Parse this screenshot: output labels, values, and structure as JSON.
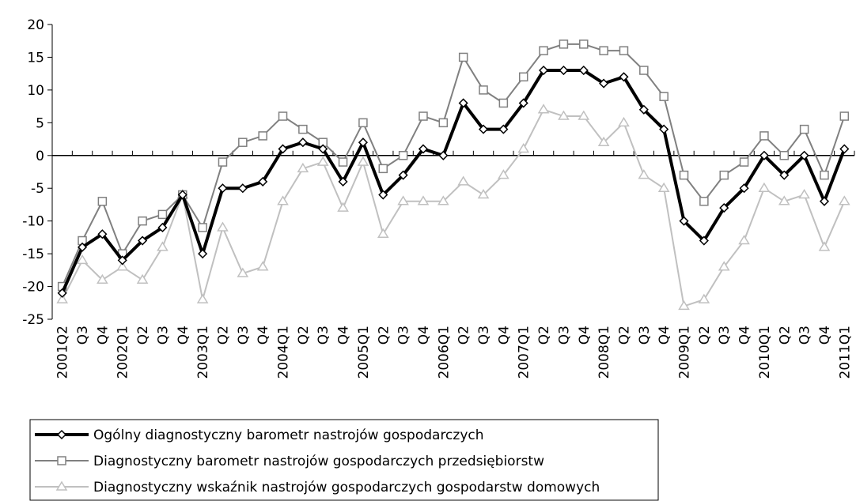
{
  "chart_data": {
    "type": "line",
    "categories": [
      "2001Q2",
      "Q3",
      "Q4",
      "2002Q1",
      "Q2",
      "Q3",
      "Q4",
      "2003Q1",
      "Q2",
      "Q3",
      "Q4",
      "2004Q1",
      "Q2",
      "Q3",
      "Q4",
      "2005Q1",
      "Q2",
      "Q3",
      "Q4",
      "2006Q1",
      "Q2",
      "Q3",
      "Q4",
      "2007Q1",
      "Q2",
      "Q3",
      "Q4",
      "2008Q1",
      "Q2",
      "Q3",
      "Q4",
      "2009Q1",
      "Q2",
      "Q3",
      "Q4",
      "2010Q1",
      "Q2",
      "Q3",
      "Q4",
      "2011Q1"
    ],
    "series": [
      {
        "name": "Ogólny diagnostyczny barometr nastrojów gospodarczych",
        "color": "#000000",
        "marker": "diamond",
        "line_width": 4,
        "values": [
          -21,
          -14,
          -12,
          -16,
          -13,
          -11,
          -6,
          -15,
          -5,
          -5,
          -4,
          1,
          2,
          1,
          -4,
          2,
          -6,
          -3,
          1,
          0,
          8,
          4,
          4,
          8,
          13,
          13,
          13,
          11,
          12,
          7,
          4,
          -10,
          -13,
          -8,
          -5,
          0,
          -3,
          0,
          -7,
          1
        ]
      },
      {
        "name": "Diagnostyczny barometr nastrojów gospodarczych przedsiębiorstw",
        "color": "#808080",
        "marker": "square",
        "line_width": 2,
        "values": [
          -20,
          -13,
          -7,
          -15,
          -10,
          -9,
          -6,
          -11,
          -1,
          2,
          3,
          6,
          4,
          2,
          -1,
          5,
          -2,
          0,
          6,
          5,
          15,
          10,
          8,
          12,
          16,
          17,
          17,
          16,
          16,
          13,
          9,
          -3,
          -7,
          -3,
          -1,
          3,
          0,
          4,
          -3,
          6
        ]
      },
      {
        "name": "Diagnostyczny wskaźnik nastrojów gospodarczych gospodarstw domowych",
        "color": "#c0c0c0",
        "marker": "triangle",
        "line_width": 2,
        "values": [
          -22,
          -16,
          -19,
          -17,
          -19,
          -14,
          -6,
          -22,
          -11,
          -18,
          -17,
          -7,
          -2,
          -1,
          -8,
          -1,
          -12,
          -7,
          -7,
          -7,
          -4,
          -6,
          -3,
          1,
          7,
          6,
          6,
          2,
          5,
          -3,
          -5,
          -23,
          -22,
          -17,
          -13,
          -5,
          -7,
          -6,
          -14,
          -7
        ]
      }
    ],
    "ylim": [
      -25,
      20
    ],
    "yticks": [
      -25,
      -20,
      -15,
      -10,
      -5,
      0,
      5,
      10,
      15,
      20
    ],
    "grid": false
  }
}
